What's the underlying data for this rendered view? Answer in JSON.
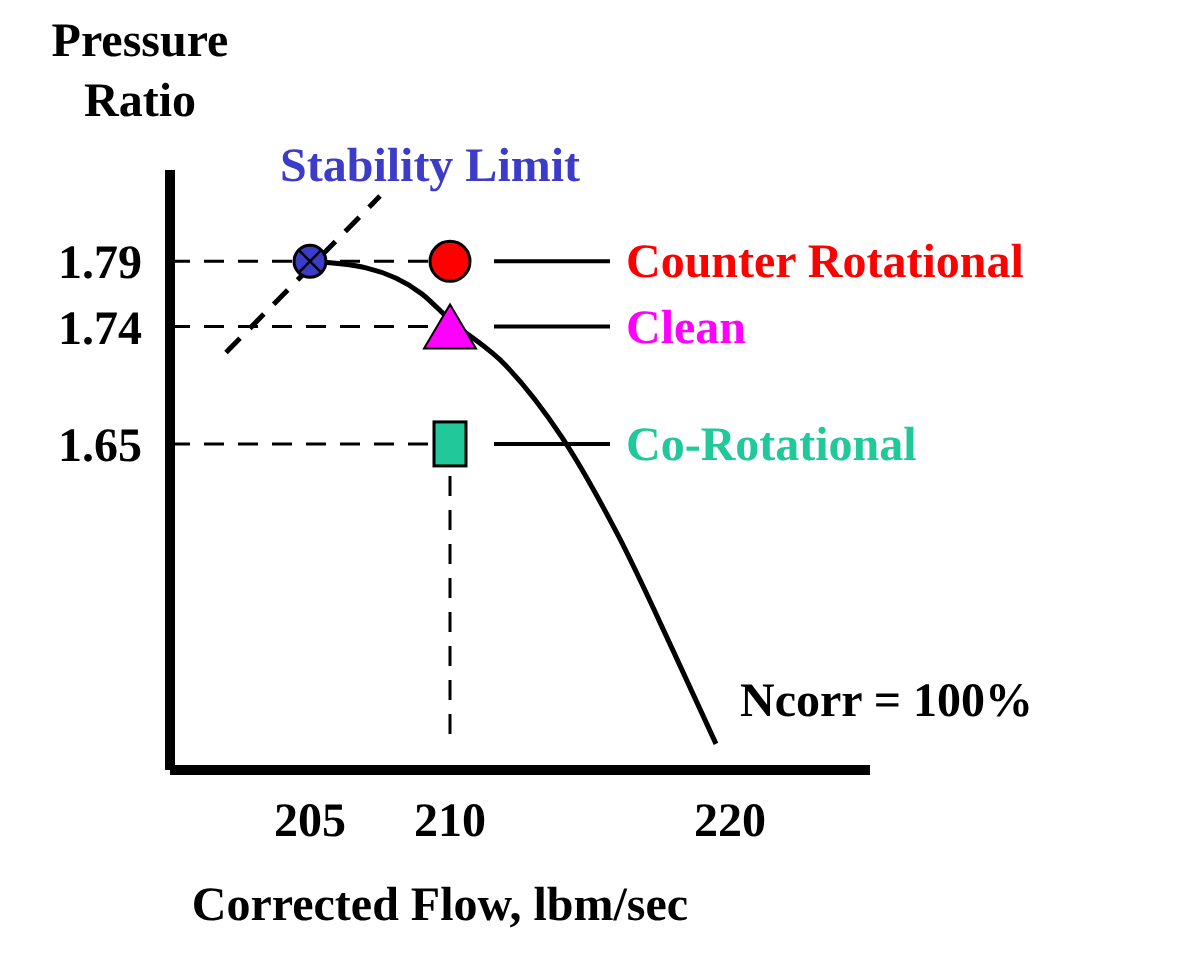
{
  "chart_data": {
    "type": "scatter",
    "ylabel": "Pressure Ratio",
    "xlabel": "Corrected Flow, lbm/sec",
    "xlim": [
      200,
      225
    ],
    "xticks": [
      205,
      210,
      220
    ],
    "ylim": [
      1.4,
      1.86
    ],
    "yticks": [
      1.65,
      1.74,
      1.79
    ],
    "legend": "right",
    "series": [
      {
        "type": "line",
        "color": "#000000",
        "line_style": "dashed",
        "x": [
          202,
          207.5
        ],
        "values": [
          1.72,
          1.84
        ]
      },
      {
        "type": "line",
        "color": "#000000",
        "line_style": "solid",
        "x": [
          205,
          207,
          209,
          210,
          212,
          214,
          216,
          218,
          219.5
        ],
        "values": [
          1.79,
          1.785,
          1.765,
          1.745,
          1.71,
          1.655,
          1.58,
          1.49,
          1.42
        ]
      },
      {
        "name": "Stability Limit",
        "color": "#3c3cc8",
        "marker": "circle",
        "x": [
          205
        ],
        "values": [
          1.79
        ]
      },
      {
        "name": "Counter Rotational",
        "color": "#ff0000",
        "marker": "circle",
        "x": [
          210
        ],
        "values": [
          1.79
        ]
      },
      {
        "name": "Clean",
        "color": "#ff00ff",
        "marker": "triangle",
        "x": [
          210
        ],
        "values": [
          1.74
        ]
      },
      {
        "name": "Co-Rotational",
        "color": "#20c89a",
        "marker": "square",
        "x": [
          210
        ],
        "values": [
          1.65
        ]
      }
    ],
    "ref_lines": [
      {
        "axis": "y",
        "value": 1.79,
        "line_style": "dashed"
      },
      {
        "axis": "y",
        "value": 1.74,
        "line_style": "dashed"
      },
      {
        "axis": "y",
        "value": 1.65,
        "line_style": "dashed"
      },
      {
        "axis": "x",
        "value": 210,
        "line_style": "dashed"
      }
    ],
    "annotations": [
      "Ncorr = 100%"
    ]
  }
}
